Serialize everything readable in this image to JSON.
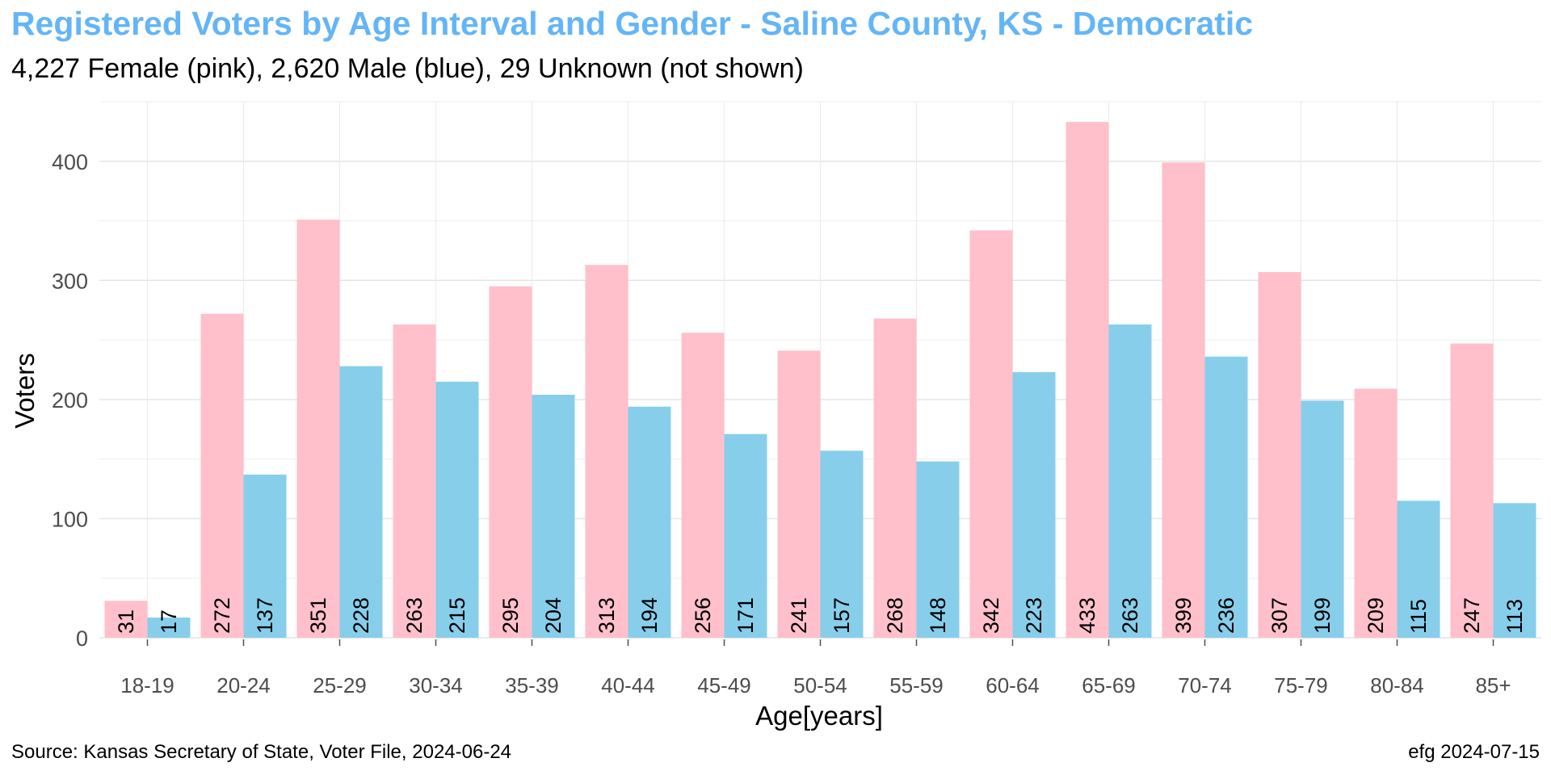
{
  "chart_data": {
    "type": "bar",
    "title": "Registered Voters by Age Interval and Gender - Saline County, KS - Democratic",
    "subtitle": "4,227 Female (pink),  2,620 Male (blue),  29 Unknown (not shown)",
    "xlabel": "Age[years]",
    "ylabel": "Voters",
    "categories": [
      "18-19",
      "20-24",
      "25-29",
      "30-34",
      "35-39",
      "40-44",
      "45-49",
      "50-54",
      "55-59",
      "60-64",
      "65-69",
      "70-74",
      "75-79",
      "80-84",
      "85+"
    ],
    "series": [
      {
        "name": "Female",
        "color": "#ffc0cb",
        "values": [
          31,
          272,
          351,
          263,
          295,
          313,
          256,
          241,
          268,
          342,
          433,
          399,
          307,
          209,
          247
        ]
      },
      {
        "name": "Male",
        "color": "#87ceeb",
        "values": [
          17,
          137,
          228,
          215,
          204,
          194,
          171,
          157,
          148,
          223,
          263,
          236,
          199,
          115,
          113
        ]
      }
    ],
    "ylim": [
      0,
      450
    ],
    "yticks": [
      0,
      100,
      200,
      300,
      400
    ],
    "grid": true,
    "data_labels": "vertical, at bar base",
    "legend": "none",
    "title_color": "#64b5f6"
  },
  "footer": {
    "source": "Source: Kansas Secretary of State, Voter File, 2024-06-24",
    "credit": "efg 2024-07-15"
  }
}
